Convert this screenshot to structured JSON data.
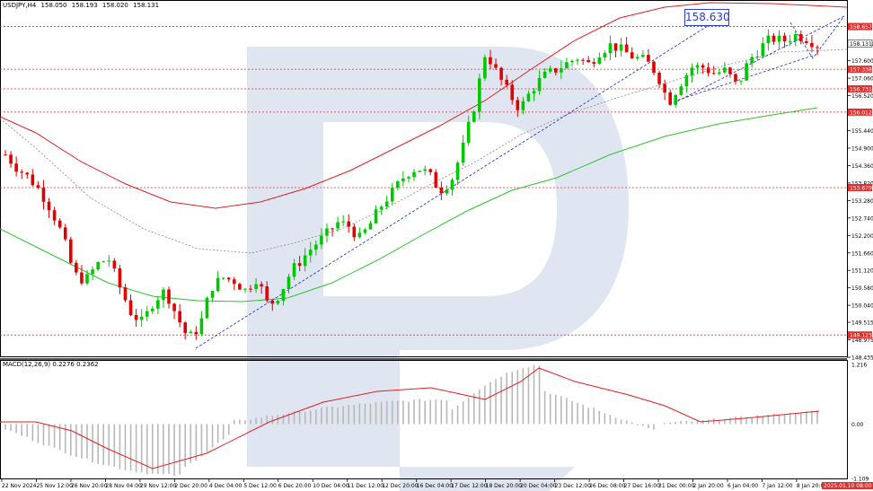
{
  "header": {
    "symbol": "USDJPY,H4",
    "open": "158.050",
    "high": "158.193",
    "low": "158.020",
    "close": "158.131"
  },
  "macd_header": "MACD(12,26,9) 0.2276 0.2362",
  "target_label": "158.630",
  "price_axis": {
    "min": 148.435,
    "max": 159.2,
    "ticks": [
      "158.131",
      "157.600",
      "157.060",
      "156.520",
      "155.440",
      "154.900",
      "154.360",
      "153.820",
      "153.280",
      "152.740",
      "152.200",
      "151.660",
      "151.120",
      "150.580",
      "150.040",
      "149.515",
      "148.975",
      "148.435"
    ]
  },
  "levels": [
    {
      "value": 158.657,
      "label": "158.657"
    },
    {
      "value": 157.338,
      "label": "157.338"
    },
    {
      "value": 156.731,
      "label": "156.731"
    },
    {
      "value": 156.012,
      "label": "156.012"
    },
    {
      "value": 153.679,
      "label": "153.679"
    },
    {
      "value": 149.123,
      "label": "149.123"
    }
  ],
  "current_price": "158.131",
  "macd_axis": {
    "ticks": [
      "1.216",
      "0.00",
      "-1.109"
    ],
    "max": 1.216,
    "min": -1.109
  },
  "time_labels": [
    "22 Nov 2024",
    "25 Nov 12:00",
    "26 Nov 20:00",
    "28 Nov 04:00",
    "29 Nov 12:00",
    "2 Dec 20:00",
    "4 Dec 04:00",
    "5 Dec 12:00",
    "6 Dec 20:00",
    "10 Dec 04:00",
    "11 Dec 12:00",
    "12 Dec 20:00",
    "16 Dec 04:00",
    "17 Dec 12:00",
    "18 Dec 20:00",
    "20 Dec 04:00",
    "23 Dec 12:00",
    "26 Dec 08:00",
    "27 Dec 16:00",
    "31 Dec 00:00",
    "2 Jan 20:00",
    "6 Jan 04:00",
    "7 Jan 12:00",
    "8 Jan 20:00"
  ],
  "current_time_label": "2025.01.10 08:00",
  "colors": {
    "up": "#00c800",
    "down": "#e00000",
    "level": "#e03030",
    "ma_upper": "#e02020",
    "ma_lower": "#30c030",
    "channel": "#2a3dcc",
    "macd_hist": "#b8b8b8",
    "macd_signal": "#e02020",
    "watermark": "#d8e0ee"
  },
  "chart_data": {
    "type": "candlestick",
    "symbol": "USDJPY",
    "timeframe": "H4",
    "x_range": [
      "22 Nov 2024",
      "2025.01.10 08:00"
    ],
    "y_range": [
      148.435,
      159.2
    ],
    "key_levels": [
      158.657,
      157.338,
      156.731,
      156.012,
      153.679,
      149.123
    ],
    "target": 158.63,
    "approx_close_path": [
      154.7,
      154.3,
      154.0,
      153.6,
      153.0,
      152.2,
      151.0,
      150.8,
      151.3,
      151.5,
      150.6,
      149.8,
      149.5,
      150.2,
      150.5,
      149.7,
      149.0,
      149.4,
      150.6,
      150.9,
      150.8,
      150.5,
      150.9,
      150.0,
      150.4,
      151.1,
      151.5,
      151.9,
      152.2,
      152.6,
      152.5,
      152.1,
      152.6,
      153.2,
      153.6,
      154.1,
      154.3,
      154.1,
      153.6,
      153.9,
      154.9,
      156.2,
      157.9,
      157.2,
      156.6,
      156.1,
      156.7,
      157.1,
      157.3,
      157.5,
      157.7,
      157.5,
      157.9,
      158.1,
      157.9,
      157.7,
      157.6,
      157.2,
      156.3,
      156.9,
      157.4,
      157.4,
      157.2,
      157.3,
      156.8,
      157.6,
      158.0,
      158.3,
      158.2,
      158.4,
      158.3,
      158.1
    ]
  }
}
